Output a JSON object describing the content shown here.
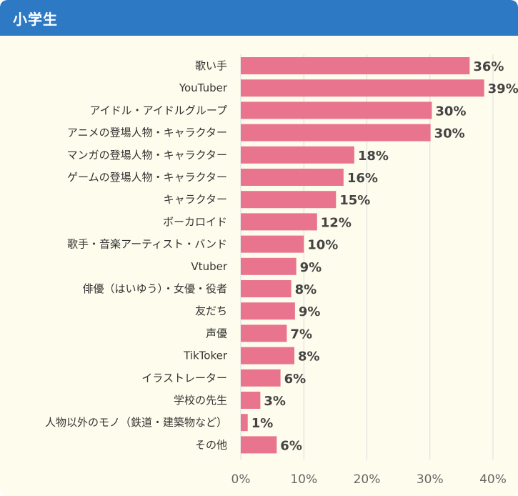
{
  "header": {
    "title": "小学生"
  },
  "colors": {
    "header_bg": "#2e79c4",
    "panel_bg": "#fefcec",
    "bar": "#e8758d",
    "grid": "#dcdcdc"
  },
  "chart_data": {
    "type": "bar",
    "orientation": "horizontal",
    "title": "小学生",
    "xlabel": "",
    "ylabel": "",
    "xlim": [
      0,
      40
    ],
    "grid": true,
    "ticks": [
      0,
      10,
      20,
      30,
      40
    ],
    "tick_labels": [
      "0%",
      "10%",
      "20%",
      "30%",
      "40%"
    ],
    "categories": [
      "歌い手",
      "YouTuber",
      "アイドル・アイドルグループ",
      "アニメの登場人物・キャラクター",
      "マンガの登場人物・キャラクター",
      "ゲームの登場人物・キャラクター",
      "キャラクター",
      "ボーカロイド",
      "歌手・音楽アーティスト・バンド",
      "Vtuber",
      "俳優（はいゆう）・女優・役者",
      "友だち",
      "声優",
      "TikToker",
      "イラストレーター",
      "学校の先生",
      "人物以外のモノ（鉄道・建築物など）",
      "その他"
    ],
    "values": [
      36.3,
      38.6,
      30.3,
      30.1,
      18.0,
      16.3,
      15.1,
      12.1,
      10.0,
      8.8,
      8.0,
      8.6,
      7.3,
      8.5,
      6.3,
      3.1,
      1.1,
      5.7
    ],
    "value_labels": [
      "36%",
      "39%",
      "30%",
      "30%",
      "18%",
      "16%",
      "15%",
      "12%",
      "10%",
      "9%",
      "8%",
      "9%",
      "7%",
      "8%",
      "6%",
      "3%",
      "1%",
      "6%"
    ]
  }
}
